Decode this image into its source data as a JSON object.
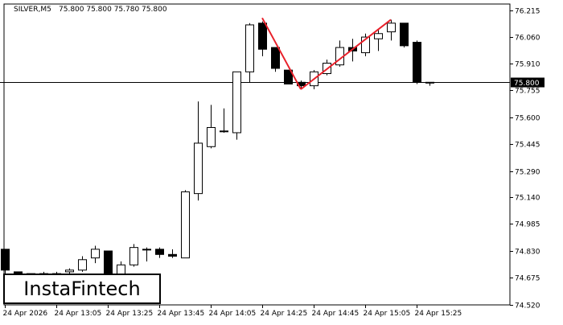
{
  "header": {
    "symbol": "SILVER,M5",
    "ohlc": "75.800 75.800 75.780 75.800"
  },
  "logo": {
    "text": "InstaFintech"
  },
  "colors": {
    "bull_fill": "#ffffff",
    "bear_fill": "#000000",
    "pattern": "#e8202a",
    "line": "#000000"
  },
  "chart_data": {
    "type": "candlestick",
    "title": "SILVER,M5",
    "ylim": [
      74.52,
      76.25
    ],
    "y_ticks": [
      76.215,
      76.06,
      75.91,
      75.755,
      75.6,
      75.445,
      75.29,
      75.14,
      74.985,
      74.83,
      74.675,
      74.52
    ],
    "y_tick_labels": [
      "76.215",
      "76.060",
      "75.910",
      "75.755",
      "75.600",
      "75.445",
      "75.290",
      "75.140",
      "74.985",
      "74.830",
      "74.675",
      "74.520"
    ],
    "x_tick_labels": [
      "24 Apr 2026",
      "24 Apr 13:05",
      "24 Apr 13:25",
      "24 Apr 13:45",
      "24 Apr 14:05",
      "24 Apr 14:25",
      "24 Apr 14:45",
      "24 Apr 15:05",
      "24 Apr 15:25"
    ],
    "x_tick_index": [
      0,
      4,
      8,
      12,
      16,
      20,
      24,
      28,
      32
    ],
    "current_price": 75.8,
    "current_price_label": "75.800",
    "candles": [
      {
        "o": 74.84,
        "h": 74.84,
        "l": 74.7,
        "c": 74.72
      },
      {
        "o": 74.71,
        "h": 74.71,
        "l": 74.69,
        "c": 74.69
      },
      {
        "o": 74.7,
        "h": 74.7,
        "l": 74.68,
        "c": 74.69
      },
      {
        "o": 74.69,
        "h": 74.71,
        "l": 74.68,
        "c": 74.7
      },
      {
        "o": 74.7,
        "h": 74.71,
        "l": 74.69,
        "c": 74.7
      },
      {
        "o": 74.71,
        "h": 74.73,
        "l": 74.69,
        "c": 74.72
      },
      {
        "o": 74.72,
        "h": 74.8,
        "l": 74.71,
        "c": 74.78
      },
      {
        "o": 74.79,
        "h": 74.86,
        "l": 74.76,
        "c": 74.84
      },
      {
        "o": 74.83,
        "h": 74.83,
        "l": 74.66,
        "c": 74.68
      },
      {
        "o": 74.69,
        "h": 74.77,
        "l": 74.67,
        "c": 74.75
      },
      {
        "o": 74.75,
        "h": 74.87,
        "l": 74.74,
        "c": 74.85
      },
      {
        "o": 74.84,
        "h": 74.85,
        "l": 74.77,
        "c": 74.84
      },
      {
        "o": 74.84,
        "h": 74.85,
        "l": 74.79,
        "c": 74.81
      },
      {
        "o": 74.81,
        "h": 74.84,
        "l": 74.79,
        "c": 74.8
      },
      {
        "o": 74.79,
        "h": 75.18,
        "l": 74.79,
        "c": 75.17
      },
      {
        "o": 75.16,
        "h": 75.69,
        "l": 75.12,
        "c": 75.45
      },
      {
        "o": 75.43,
        "h": 75.67,
        "l": 75.42,
        "c": 75.54
      },
      {
        "o": 75.52,
        "h": 75.65,
        "l": 75.51,
        "c": 75.52
      },
      {
        "o": 75.51,
        "h": 75.86,
        "l": 75.47,
        "c": 75.86
      },
      {
        "o": 75.86,
        "h": 76.14,
        "l": 75.8,
        "c": 76.13
      },
      {
        "o": 76.14,
        "h": 76.15,
        "l": 75.95,
        "c": 75.99
      },
      {
        "o": 76.0,
        "h": 76.0,
        "l": 75.86,
        "c": 75.88
      },
      {
        "o": 75.87,
        "h": 75.87,
        "l": 75.79,
        "c": 75.79
      },
      {
        "o": 75.8,
        "h": 75.81,
        "l": 75.76,
        "c": 75.78
      },
      {
        "o": 75.78,
        "h": 75.87,
        "l": 75.76,
        "c": 75.86
      },
      {
        "o": 75.85,
        "h": 75.93,
        "l": 75.84,
        "c": 75.91
      },
      {
        "o": 75.9,
        "h": 76.04,
        "l": 75.89,
        "c": 76.0
      },
      {
        "o": 76.0,
        "h": 76.05,
        "l": 75.92,
        "c": 75.98
      },
      {
        "o": 75.97,
        "h": 76.08,
        "l": 75.95,
        "c": 76.06
      },
      {
        "o": 76.05,
        "h": 76.1,
        "l": 75.98,
        "c": 76.08
      },
      {
        "o": 76.09,
        "h": 76.16,
        "l": 76.04,
        "c": 76.14
      },
      {
        "o": 76.14,
        "h": 76.14,
        "l": 76.0,
        "c": 76.01
      },
      {
        "o": 76.03,
        "h": 76.04,
        "l": 75.79,
        "c": 75.8
      },
      {
        "o": 75.8,
        "h": 75.8,
        "l": 75.78,
        "c": 75.8
      }
    ],
    "pattern_lines": [
      {
        "from": {
          "i": 20,
          "y": 76.17
        },
        "to": {
          "i": 23,
          "y": 75.76
        }
      },
      {
        "from": {
          "i": 23,
          "y": 75.76
        },
        "to": {
          "i": 30,
          "y": 76.16
        }
      }
    ],
    "grid": false
  }
}
